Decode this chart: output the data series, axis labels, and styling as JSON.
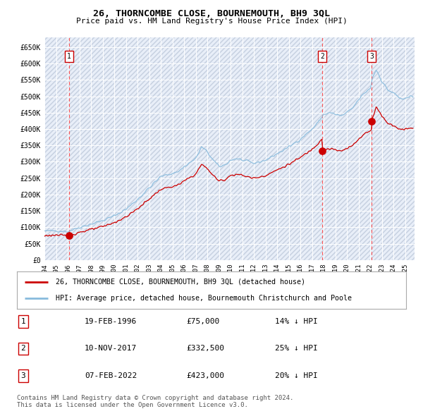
{
  "title": "26, THORNCOMBE CLOSE, BOURNEMOUTH, BH9 3QL",
  "subtitle": "Price paid vs. HM Land Registry's House Price Index (HPI)",
  "ylim": [
    0,
    680000
  ],
  "yticks": [
    0,
    50000,
    100000,
    150000,
    200000,
    250000,
    300000,
    350000,
    400000,
    450000,
    500000,
    550000,
    600000,
    650000
  ],
  "xlim_start": 1994.0,
  "xlim_end": 2025.8,
  "xticks": [
    1994,
    1995,
    1996,
    1997,
    1998,
    1999,
    2000,
    2001,
    2002,
    2003,
    2004,
    2005,
    2006,
    2007,
    2008,
    2009,
    2010,
    2011,
    2012,
    2013,
    2014,
    2015,
    2016,
    2017,
    2018,
    2019,
    2020,
    2021,
    2022,
    2023,
    2024,
    2025
  ],
  "sale_dates": [
    1996.12,
    2017.87,
    2022.1
  ],
  "sale_prices": [
    75000,
    332500,
    423000
  ],
  "sale_labels": [
    "1",
    "2",
    "3"
  ],
  "red_line_color": "#cc0000",
  "blue_line_color": "#88bbdd",
  "legend_label_red": "26, THORNCOMBE CLOSE, BOURNEMOUTH, BH9 3QL (detached house)",
  "legend_label_blue": "HPI: Average price, detached house, Bournemouth Christchurch and Poole",
  "table_rows": [
    [
      "1",
      "19-FEB-1996",
      "£75,000",
      "14% ↓ HPI"
    ],
    [
      "2",
      "10-NOV-2017",
      "£332,500",
      "25% ↓ HPI"
    ],
    [
      "3",
      "07-FEB-2022",
      "£423,000",
      "20% ↓ HPI"
    ]
  ],
  "footer": "Contains HM Land Registry data © Crown copyright and database right 2024.\nThis data is licensed under the Open Government Licence v3.0."
}
